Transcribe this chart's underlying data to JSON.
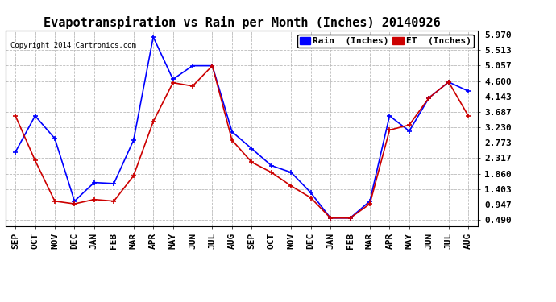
{
  "title": "Evapotranspiration vs Rain per Month (Inches) 20140926",
  "copyright": "Copyright 2014 Cartronics.com",
  "months": [
    "SEP",
    "OCT",
    "NOV",
    "DEC",
    "JAN",
    "FEB",
    "MAR",
    "APR",
    "MAY",
    "JUN",
    "JUL",
    "AUG",
    "SEP",
    "OCT",
    "NOV",
    "DEC",
    "JAN",
    "FEB",
    "MAR",
    "APR",
    "MAY",
    "JUN",
    "JUL",
    "AUG"
  ],
  "rain": [
    2.5,
    3.57,
    2.9,
    1.05,
    1.6,
    1.57,
    2.85,
    5.9,
    4.65,
    5.05,
    5.05,
    3.1,
    2.6,
    2.1,
    1.9,
    1.3,
    0.55,
    0.55,
    1.05,
    3.57,
    3.12,
    4.1,
    4.57,
    4.3
  ],
  "et": [
    3.57,
    2.25,
    1.05,
    0.97,
    1.1,
    1.05,
    1.8,
    3.4,
    4.55,
    4.45,
    5.05,
    2.85,
    2.2,
    1.9,
    1.5,
    1.15,
    0.55,
    0.55,
    0.97,
    3.15,
    3.3,
    4.1,
    4.57,
    3.57
  ],
  "yticks": [
    0.49,
    0.947,
    1.403,
    1.86,
    2.317,
    2.773,
    3.23,
    3.687,
    4.143,
    4.6,
    5.057,
    5.513,
    5.97
  ],
  "ylim_min": 0.3,
  "ylim_max": 6.1,
  "rain_color": "#0000ff",
  "et_color": "#cc0000",
  "background_color": "#ffffff",
  "grid_color": "#bbbbbb",
  "title_fontsize": 11,
  "tick_fontsize": 8,
  "legend_fontsize": 8
}
